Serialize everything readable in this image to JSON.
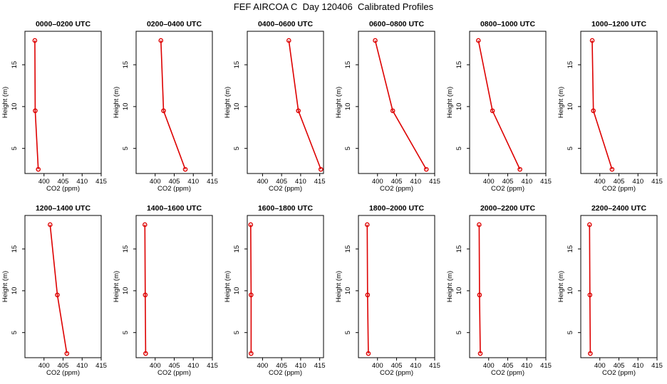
{
  "page_title": "FEF AIRCOA C  Day 120406  Calibrated Profiles",
  "chart_data": {
    "type": "line",
    "title": "FEF AIRCOA C  Day 120406  Calibrated Profiles",
    "xlabel": "CO2 (ppm)",
    "ylabel": "Height (m)",
    "line_color": "#dd0000",
    "grid": false,
    "xlims": {
      "A": [
        395,
        415
      ],
      "B": [
        396,
        416
      ]
    },
    "ylim": [
      2,
      19
    ],
    "yticks": [
      5,
      10,
      15
    ],
    "panels": [
      {
        "title": "0000–0200 UTC",
        "xaxis": "A",
        "xticks": [
          "400",
          "405",
          "410",
          "415"
        ],
        "points": [
          [
            397.6,
            17.9
          ],
          [
            397.7,
            9.5
          ],
          [
            398.5,
            2.5
          ]
        ]
      },
      {
        "title": "0200–0400 UTC",
        "xaxis": "A",
        "xticks": [
          "400",
          "405",
          "410",
          "415"
        ],
        "points": [
          [
            401.5,
            17.9
          ],
          [
            402.2,
            9.5
          ],
          [
            407.9,
            2.5
          ]
        ]
      },
      {
        "title": "0400–0600 UTC",
        "xaxis": "B",
        "xticks": [
          "400",
          "405",
          "410",
          "415"
        ],
        "points": [
          [
            406.9,
            17.9
          ],
          [
            409.4,
            9.5
          ],
          [
            415.3,
            2.5
          ]
        ]
      },
      {
        "title": "0600–0800 UTC",
        "xaxis": "A",
        "xticks": [
          "400",
          "405",
          "410",
          "415"
        ],
        "points": [
          [
            399.4,
            17.9
          ],
          [
            404.0,
            9.5
          ],
          [
            412.8,
            2.5
          ]
        ]
      },
      {
        "title": "0800–1000 UTC",
        "xaxis": "A",
        "xticks": [
          "400",
          "405",
          "410",
          "415"
        ],
        "points": [
          [
            397.3,
            17.9
          ],
          [
            401.0,
            9.5
          ],
          [
            408.2,
            2.5
          ]
        ]
      },
      {
        "title": "1000–1200 UTC",
        "xaxis": "A",
        "xticks": [
          "400",
          "405",
          "410",
          "415"
        ],
        "points": [
          [
            398.0,
            17.9
          ],
          [
            398.3,
            9.5
          ],
          [
            403.2,
            2.5
          ]
        ]
      },
      {
        "title": "1200–1400 UTC",
        "xaxis": "A",
        "xticks": [
          "400",
          "405",
          "410",
          "415"
        ],
        "points": [
          [
            401.6,
            17.9
          ],
          [
            403.5,
            9.5
          ],
          [
            406.0,
            2.5
          ]
        ]
      },
      {
        "title": "1400–1600 UTC",
        "xaxis": "A",
        "xticks": [
          "400",
          "405",
          "410",
          "415"
        ],
        "points": [
          [
            397.3,
            17.9
          ],
          [
            397.4,
            9.5
          ],
          [
            397.5,
            2.5
          ]
        ]
      },
      {
        "title": "1600–1800 UTC",
        "xaxis": "B",
        "xticks": [
          "400",
          "405",
          "410",
          "415"
        ],
        "points": [
          [
            396.9,
            17.9
          ],
          [
            397.0,
            9.5
          ],
          [
            397.0,
            2.5
          ]
        ]
      },
      {
        "title": "1800–2000 UTC",
        "xaxis": "A",
        "xticks": [
          "400",
          "405",
          "410",
          "415"
        ],
        "points": [
          [
            397.3,
            17.9
          ],
          [
            397.4,
            9.5
          ],
          [
            397.6,
            2.5
          ]
        ]
      },
      {
        "title": "2000–2200 UTC",
        "xaxis": "A",
        "xticks": [
          "400",
          "405",
          "410",
          "415"
        ],
        "points": [
          [
            397.5,
            17.9
          ],
          [
            397.6,
            9.5
          ],
          [
            397.8,
            2.5
          ]
        ]
      },
      {
        "title": "2200–2400 UTC",
        "xaxis": "A",
        "xticks": [
          "400",
          "405",
          "410",
          "415"
        ],
        "points": [
          [
            397.3,
            17.9
          ],
          [
            397.4,
            9.5
          ],
          [
            397.5,
            2.5
          ]
        ]
      }
    ]
  }
}
